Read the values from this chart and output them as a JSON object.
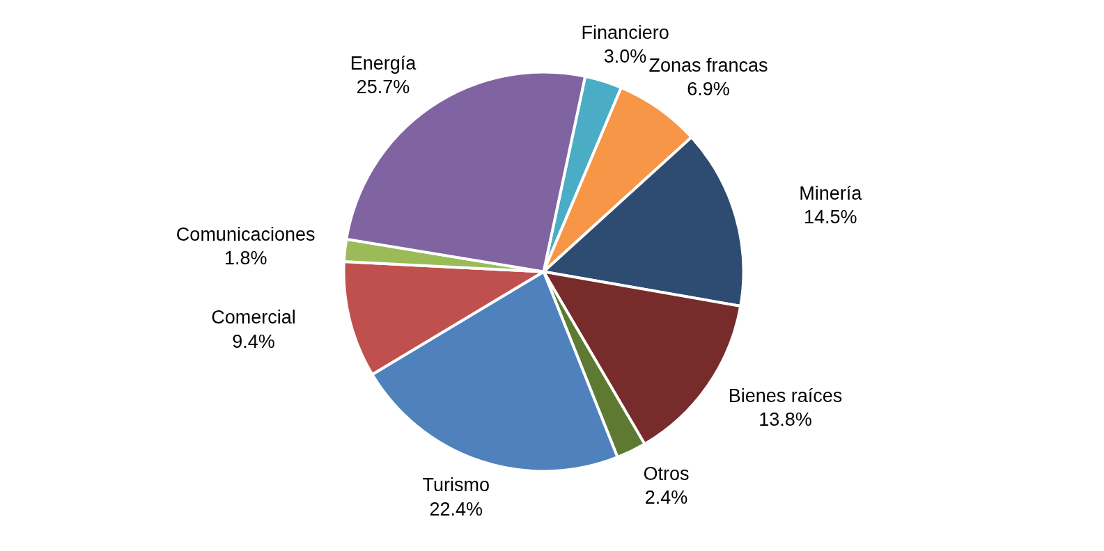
{
  "chart_data": {
    "type": "pie",
    "categories": [
      "Financiero",
      "Zonas francas",
      "Minería",
      "Bienes raíces",
      "Otros",
      "Turismo",
      "Comercial",
      "Comunicaciones",
      "Energía"
    ],
    "values": [
      3.0,
      6.9,
      14.5,
      13.8,
      2.4,
      22.4,
      9.4,
      1.8,
      25.7
    ],
    "value_labels": [
      "3.0%",
      "6.9%",
      "14.5%",
      "13.8%",
      "2.4%",
      "22.4%",
      "9.4%",
      "1.8%",
      "25.7%"
    ],
    "colors": [
      "#4bacc6",
      "#f79646",
      "#2e4c72",
      "#772b2b",
      "#5e7a32",
      "#4f81bd",
      "#c0504d",
      "#9bbb59",
      "#8064a2"
    ]
  }
}
